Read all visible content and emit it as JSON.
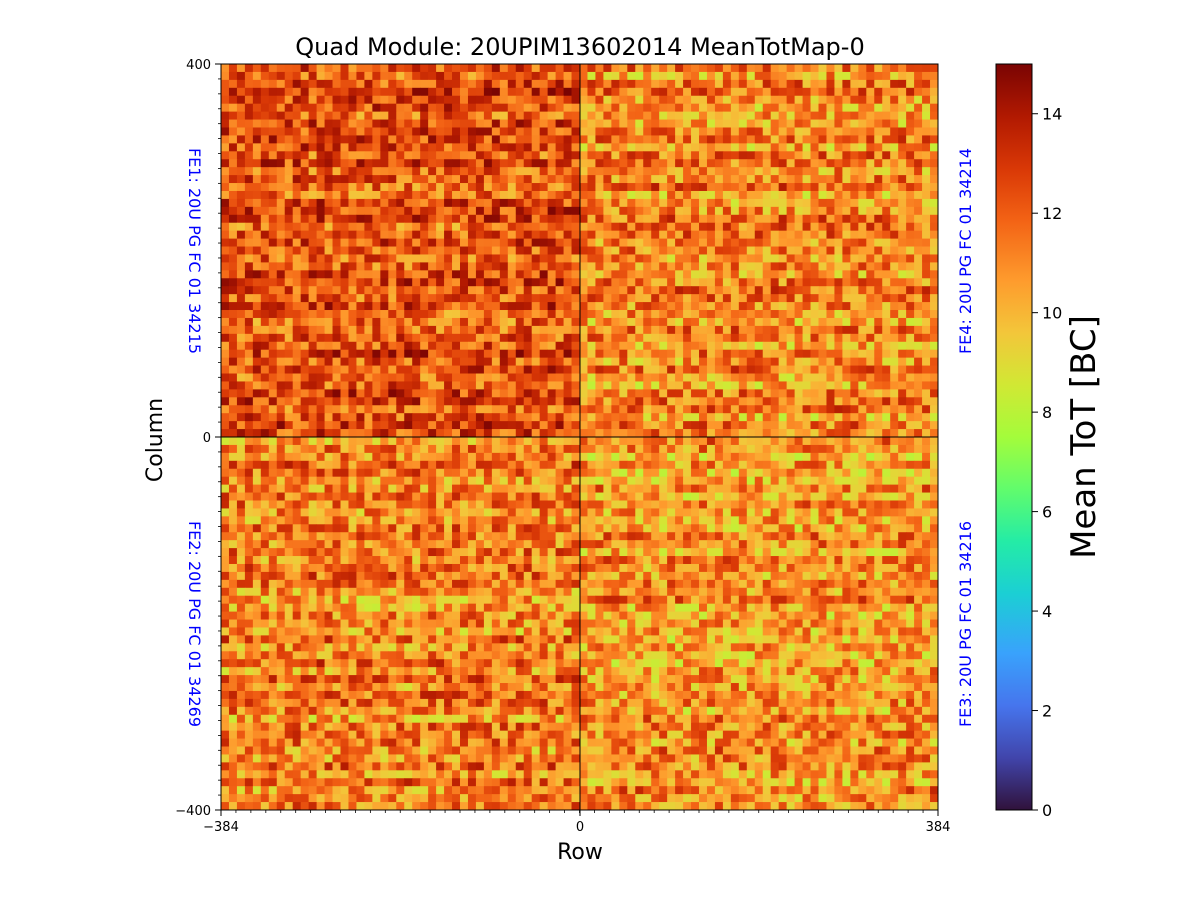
{
  "chart_data": {
    "type": "heatmap",
    "title": "Quad Module: 20UPIM13602014 MeanTotMap-0",
    "xlabel": "Row",
    "ylabel": "Column",
    "xlim": [
      -384,
      384
    ],
    "ylim": [
      -400,
      400
    ],
    "x_ticks": [
      {
        "value": -384,
        "label": "−384"
      },
      {
        "value": 0,
        "label": "0"
      },
      {
        "value": 384,
        "label": "384"
      }
    ],
    "y_ticks": [
      {
        "value": 400,
        "label": "400"
      },
      {
        "value": 0,
        "label": "0"
      },
      {
        "value": -400,
        "label": "−400"
      }
    ],
    "colorbar": {
      "label": "Mean ToT [BC]",
      "range": [
        0,
        15
      ],
      "colormap": "turbo",
      "ticks": [
        {
          "value": 0,
          "label": "0"
        },
        {
          "value": 2,
          "label": "2"
        },
        {
          "value": 4,
          "label": "4"
        },
        {
          "value": 6,
          "label": "6"
        },
        {
          "value": 8,
          "label": "8"
        },
        {
          "value": 10,
          "label": "10"
        },
        {
          "value": 12,
          "label": "12"
        },
        {
          "value": 14,
          "label": "14"
        }
      ]
    },
    "chips": [
      {
        "name": "FE1",
        "label": "FE1: 20U PG FC 01 34215",
        "quadrant": "top-left",
        "x_range": [
          -384,
          0
        ],
        "y_range": [
          0,
          400
        ],
        "typical_mean_tot": 12.2
      },
      {
        "name": "FE4",
        "label": "FE4: 20U PG FC 01 34214",
        "quadrant": "top-right",
        "x_range": [
          0,
          384
        ],
        "y_range": [
          0,
          400
        ],
        "typical_mean_tot": 11.0
      },
      {
        "name": "FE2",
        "label": "FE2: 20U PG FC 01 34269",
        "quadrant": "bottom-left",
        "x_range": [
          -384,
          0
        ],
        "y_range": [
          -400,
          0
        ],
        "typical_mean_tot": 11.2
      },
      {
        "name": "FE3",
        "label": "FE3: 20U PG FC 01 34216",
        "quadrant": "bottom-right",
        "x_range": [
          0,
          384
        ],
        "y_range": [
          -400,
          0
        ],
        "typical_mean_tot": 10.8
      }
    ],
    "grid": false
  }
}
